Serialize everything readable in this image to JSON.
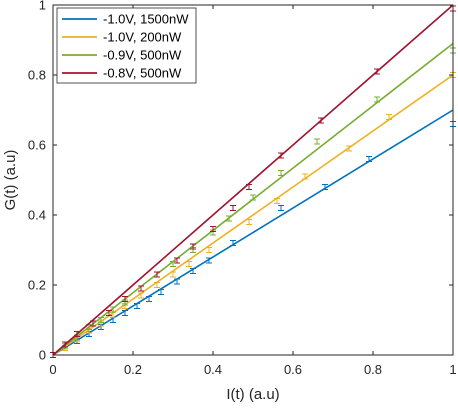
{
  "chart_data": {
    "type": "scatter",
    "title": "",
    "xlabel": "I(t) (a.u)",
    "ylabel": "G(t) (a.u)",
    "xlim": [
      0,
      1
    ],
    "ylim": [
      0,
      1
    ],
    "xticks": [
      0,
      0.2,
      0.4,
      0.6,
      0.8,
      1
    ],
    "yticks": [
      0,
      0.2,
      0.4,
      0.6,
      0.8,
      1
    ],
    "xtick_labels": [
      "0",
      "0.2",
      "0.4",
      "0.6",
      "0.8",
      "1"
    ],
    "ytick_labels": [
      "0",
      "0.2",
      "0.4",
      "0.6",
      "0.8",
      "1"
    ],
    "grid": false,
    "legend_position": "top-left",
    "series": [
      {
        "name": "-1.0V, 1500nW",
        "color": "#0072BD",
        "fit": {
          "x": [
            0,
            1
          ],
          "y": [
            0,
            0.7
          ]
        },
        "points": [
          {
            "x": 0.0,
            "y": 0.0
          },
          {
            "x": 0.03,
            "y": 0.02
          },
          {
            "x": 0.06,
            "y": 0.04
          },
          {
            "x": 0.09,
            "y": 0.06
          },
          {
            "x": 0.12,
            "y": 0.08
          },
          {
            "x": 0.15,
            "y": 0.1
          },
          {
            "x": 0.18,
            "y": 0.12
          },
          {
            "x": 0.21,
            "y": 0.14
          },
          {
            "x": 0.24,
            "y": 0.16
          },
          {
            "x": 0.27,
            "y": 0.18
          },
          {
            "x": 0.31,
            "y": 0.21
          },
          {
            "x": 0.35,
            "y": 0.24
          },
          {
            "x": 0.39,
            "y": 0.27
          },
          {
            "x": 0.45,
            "y": 0.32
          },
          {
            "x": 0.57,
            "y": 0.42
          },
          {
            "x": 0.68,
            "y": 0.48
          },
          {
            "x": 0.79,
            "y": 0.56
          },
          {
            "x": 1.0,
            "y": 0.66
          }
        ]
      },
      {
        "name": "-1.0V, 200nW",
        "color": "#EDB120",
        "fit": {
          "x": [
            0,
            1
          ],
          "y": [
            0,
            0.8
          ]
        },
        "points": [
          {
            "x": 0.0,
            "y": 0.0
          },
          {
            "x": 0.03,
            "y": 0.02
          },
          {
            "x": 0.06,
            "y": 0.045
          },
          {
            "x": 0.09,
            "y": 0.07
          },
          {
            "x": 0.12,
            "y": 0.09
          },
          {
            "x": 0.15,
            "y": 0.115
          },
          {
            "x": 0.18,
            "y": 0.14
          },
          {
            "x": 0.22,
            "y": 0.17
          },
          {
            "x": 0.26,
            "y": 0.2
          },
          {
            "x": 0.3,
            "y": 0.23
          },
          {
            "x": 0.34,
            "y": 0.26
          },
          {
            "x": 0.39,
            "y": 0.3
          },
          {
            "x": 0.49,
            "y": 0.38
          },
          {
            "x": 0.56,
            "y": 0.44
          },
          {
            "x": 0.63,
            "y": 0.51
          },
          {
            "x": 0.74,
            "y": 0.59
          },
          {
            "x": 0.84,
            "y": 0.68
          },
          {
            "x": 1.0,
            "y": 0.8
          }
        ]
      },
      {
        "name": "-0.9V, 500nW",
        "color": "#77AC30",
        "fit": {
          "x": [
            0,
            1
          ],
          "y": [
            0,
            0.89
          ]
        },
        "points": [
          {
            "x": 0.0,
            "y": 0.0
          },
          {
            "x": 0.03,
            "y": 0.025
          },
          {
            "x": 0.06,
            "y": 0.05
          },
          {
            "x": 0.09,
            "y": 0.08
          },
          {
            "x": 0.12,
            "y": 0.1
          },
          {
            "x": 0.15,
            "y": 0.13
          },
          {
            "x": 0.18,
            "y": 0.15
          },
          {
            "x": 0.22,
            "y": 0.19
          },
          {
            "x": 0.26,
            "y": 0.23
          },
          {
            "x": 0.3,
            "y": 0.26
          },
          {
            "x": 0.35,
            "y": 0.3
          },
          {
            "x": 0.4,
            "y": 0.35
          },
          {
            "x": 0.44,
            "y": 0.39
          },
          {
            "x": 0.5,
            "y": 0.45
          },
          {
            "x": 0.57,
            "y": 0.52
          },
          {
            "x": 0.66,
            "y": 0.61
          },
          {
            "x": 0.81,
            "y": 0.73
          },
          {
            "x": 1.0,
            "y": 0.87
          }
        ]
      },
      {
        "name": "-0.8V, 500nW",
        "color": "#A2142F",
        "fit": {
          "x": [
            0,
            1
          ],
          "y": [
            0,
            1.0
          ]
        },
        "points": [
          {
            "x": 0.0,
            "y": 0.0
          },
          {
            "x": 0.03,
            "y": 0.03
          },
          {
            "x": 0.06,
            "y": 0.06
          },
          {
            "x": 0.1,
            "y": 0.09
          },
          {
            "x": 0.14,
            "y": 0.12
          },
          {
            "x": 0.18,
            "y": 0.16
          },
          {
            "x": 0.22,
            "y": 0.19
          },
          {
            "x": 0.26,
            "y": 0.23
          },
          {
            "x": 0.31,
            "y": 0.27
          },
          {
            "x": 0.35,
            "y": 0.31
          },
          {
            "x": 0.4,
            "y": 0.36
          },
          {
            "x": 0.45,
            "y": 0.42
          },
          {
            "x": 0.49,
            "y": 0.48
          },
          {
            "x": 0.57,
            "y": 0.57
          },
          {
            "x": 0.67,
            "y": 0.67
          },
          {
            "x": 0.81,
            "y": 0.81
          },
          {
            "x": 1.0,
            "y": 0.99
          }
        ]
      }
    ]
  }
}
